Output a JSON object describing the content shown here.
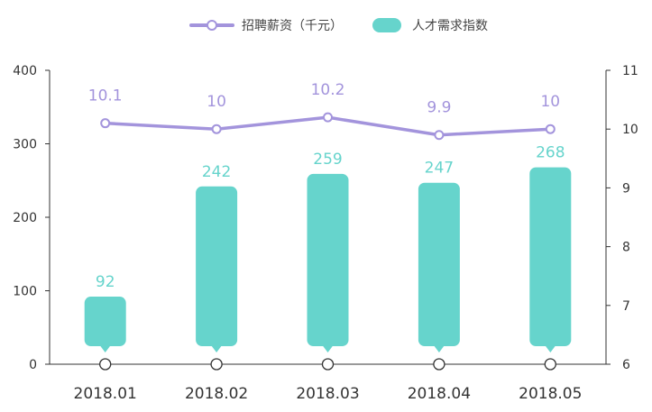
{
  "colors": {
    "bar": "#66d4cc",
    "line": "#a394dc",
    "axis": "#333333",
    "marker_fill": "#ffffff"
  },
  "chart_data": {
    "type": "bar",
    "categories": [
      "2018.01",
      "2018.02",
      "2018.03",
      "2018.04",
      "2018.05"
    ],
    "series": [
      {
        "name": "人才需求指数",
        "type": "bar",
        "axis": "left",
        "values": [
          92,
          242,
          259,
          247,
          268
        ],
        "labels": [
          "92",
          "242",
          "259",
          "247",
          "268"
        ]
      },
      {
        "name": "招聘薪资（千元）",
        "type": "line",
        "axis": "right",
        "values": [
          10.1,
          10,
          10.2,
          9.9,
          10
        ],
        "labels": [
          "10.1",
          "10",
          "10.2",
          "9.9",
          "10"
        ]
      }
    ],
    "y_left": {
      "ylim": [
        0,
        400
      ],
      "ticks": [
        "0",
        "100",
        "200",
        "300",
        "400"
      ]
    },
    "y_right": {
      "ylim": [
        6,
        11
      ],
      "ticks": [
        "6",
        "7",
        "8",
        "9",
        "10",
        "11"
      ]
    },
    "legend": {
      "position": "top-center"
    },
    "grid": false
  }
}
